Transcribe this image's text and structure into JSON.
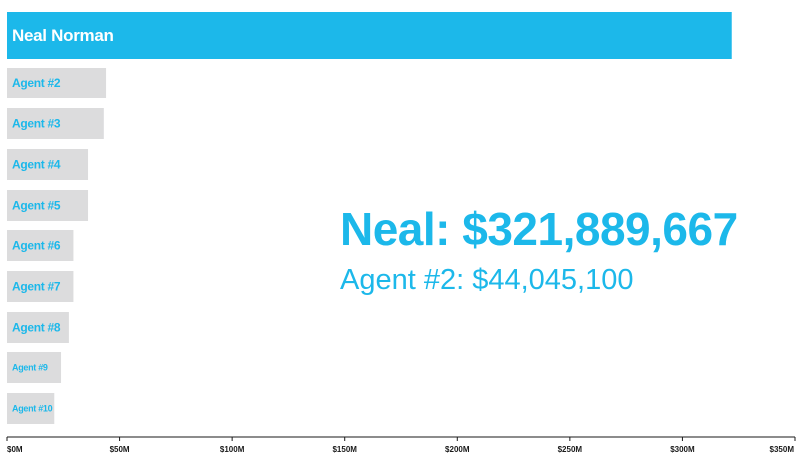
{
  "colors": {
    "accent": "#1cb8ea",
    "bar_gray": "#dcdcdd",
    "axis": "#1a1a1a",
    "label_on_accent": "#ffffff"
  },
  "callout": {
    "main": "Neal: $321,889,667",
    "sub": "Agent #2: $44,045,100"
  },
  "chart_data": {
    "type": "bar",
    "orientation": "horizontal",
    "title": "",
    "xlabel": "",
    "ylabel": "",
    "xlim": [
      0,
      350
    ],
    "unit": "millions USD",
    "grid": false,
    "legend": "none",
    "categories": [
      "Neal Norman",
      "Agent #2",
      "Agent #3",
      "Agent #4",
      "Agent #5",
      "Agent #6",
      "Agent #7",
      "Agent #8",
      "Agent #9",
      "Agent #10"
    ],
    "values": [
      321.9,
      44.0,
      43.0,
      36.0,
      36.0,
      29.5,
      29.5,
      27.5,
      24.0,
      21.0
    ],
    "highlight_index": 0,
    "ticks": [
      0,
      50,
      100,
      150,
      200,
      250,
      300,
      350
    ],
    "tick_labels": [
      "$0M",
      "$50M",
      "$100M",
      "$150M",
      "$200M",
      "$250M",
      "$300M",
      "$350M"
    ]
  }
}
